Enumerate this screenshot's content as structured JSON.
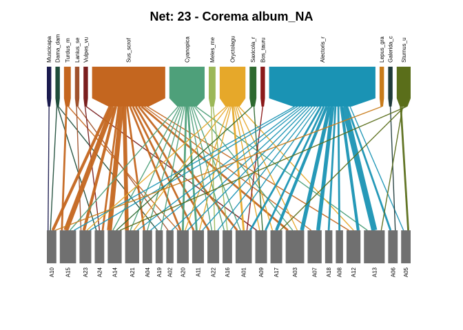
{
  "title": "Net: 23 - Corema album_NA",
  "colors": {
    "lower_box": "#707070",
    "background": "#ffffff"
  },
  "upper_nodes": [
    {
      "label": "Muscicapa",
      "weight": 1,
      "color": "#1a1a4e"
    },
    {
      "label": "Dama_dam",
      "weight": 1,
      "color": "#1f4d3a"
    },
    {
      "label": "Turdus_m",
      "weight": 2,
      "color": "#c4661f"
    },
    {
      "label": "Lanius_se",
      "weight": 1,
      "color": "#a0522d"
    },
    {
      "label": "Vulpes_vu",
      "weight": 1,
      "color": "#7a1f1f"
    },
    {
      "label": "Sus_scrof",
      "weight": 30,
      "color": "#c4661f"
    },
    {
      "label": "Cyanopica",
      "weight": 14,
      "color": "#4ea07a"
    },
    {
      "label": "Meles_me",
      "weight": 2,
      "color": "#9cb858"
    },
    {
      "label": "Oryctolagu",
      "weight": 10,
      "color": "#e6a82a"
    },
    {
      "label": "Saxicola_r",
      "weight": 2,
      "color": "#2e6a30"
    },
    {
      "label": "Bos_tauru",
      "weight": 1,
      "color": "#8b1a1a"
    },
    {
      "label": "Alectoris_r",
      "weight": 44,
      "color": "#1a93b4"
    },
    {
      "label": "Lepus_gra",
      "weight": 1,
      "color": "#c87b1a"
    },
    {
      "label": "Galerida_c",
      "weight": 1,
      "color": "#1f3a3a"
    },
    {
      "label": "Sturnus_u",
      "weight": 5,
      "color": "#5a6e1a"
    }
  ],
  "lower_nodes": [
    {
      "label": "A10",
      "weight": 3
    },
    {
      "label": "A15",
      "weight": 6
    },
    {
      "label": "A23",
      "weight": 4
    },
    {
      "label": "A24",
      "weight": 3
    },
    {
      "label": "A14",
      "weight": 5
    },
    {
      "label": "A21",
      "weight": 5
    },
    {
      "label": "A04",
      "weight": 3
    },
    {
      "label": "A19",
      "weight": 2
    },
    {
      "label": "A02",
      "weight": 2
    },
    {
      "label": "A20",
      "weight": 4
    },
    {
      "label": "A11",
      "weight": 4
    },
    {
      "label": "A22",
      "weight": 4
    },
    {
      "label": "A16",
      "weight": 3
    },
    {
      "label": "A01",
      "weight": 6
    },
    {
      "label": "A09",
      "weight": 4
    },
    {
      "label": "A17",
      "weight": 4
    },
    {
      "label": "A03",
      "weight": 7
    },
    {
      "label": "A07",
      "weight": 5
    },
    {
      "label": "A18",
      "weight": 2
    },
    {
      "label": "A08",
      "weight": 2
    },
    {
      "label": "A12",
      "weight": 5
    },
    {
      "label": "A13",
      "weight": 8
    },
    {
      "label": "A06",
      "weight": 3
    },
    {
      "label": "A05",
      "weight": 3
    }
  ],
  "links": [
    {
      "from": "Muscicapa",
      "to": "A10",
      "w": 1
    },
    {
      "from": "Dama_dam",
      "to": "A10",
      "w": 1
    },
    {
      "from": "Dama_dam",
      "to": "A24",
      "w": 1
    },
    {
      "from": "Dama_dam",
      "to": "A19",
      "w": 1
    },
    {
      "from": "Turdus_m",
      "to": "A15",
      "w": 2
    },
    {
      "from": "Turdus_m",
      "to": "A20",
      "w": 1
    },
    {
      "from": "Lanius_se",
      "to": "A23",
      "w": 1
    },
    {
      "from": "Lanius_se",
      "to": "A02",
      "w": 1
    },
    {
      "from": "Vulpes_vu",
      "to": "A24",
      "w": 1
    },
    {
      "from": "Vulpes_vu",
      "to": "A09",
      "w": 1
    },
    {
      "from": "Sus_scrof",
      "to": "A10",
      "w": 3
    },
    {
      "from": "Sus_scrof",
      "to": "A15",
      "w": 5
    },
    {
      "from": "Sus_scrof",
      "to": "A23",
      "w": 3
    },
    {
      "from": "Sus_scrof",
      "to": "A24",
      "w": 2
    },
    {
      "from": "Sus_scrof",
      "to": "A14",
      "w": 5
    },
    {
      "from": "Sus_scrof",
      "to": "A21",
      "w": 4
    },
    {
      "from": "Sus_scrof",
      "to": "A04",
      "w": 2
    },
    {
      "from": "Sus_scrof",
      "to": "A20",
      "w": 2
    },
    {
      "from": "Sus_scrof",
      "to": "A11",
      "w": 2
    },
    {
      "from": "Sus_scrof",
      "to": "A22",
      "w": 2
    },
    {
      "from": "Sus_scrof",
      "to": "A01",
      "w": 2
    },
    {
      "from": "Sus_scrof",
      "to": "A03",
      "w": 2
    },
    {
      "from": "Sus_scrof",
      "to": "A07",
      "w": 1
    },
    {
      "from": "Sus_scrof",
      "to": "A12",
      "w": 1
    },
    {
      "from": "Cyanopica",
      "to": "A15",
      "w": 1
    },
    {
      "from": "Cyanopica",
      "to": "A14",
      "w": 1
    },
    {
      "from": "Cyanopica",
      "to": "A21",
      "w": 1
    },
    {
      "from": "Cyanopica",
      "to": "A04",
      "w": 1
    },
    {
      "from": "Cyanopica",
      "to": "A19",
      "w": 1
    },
    {
      "from": "Cyanopica",
      "to": "A20",
      "w": 2
    },
    {
      "from": "Cyanopica",
      "to": "A11",
      "w": 2
    },
    {
      "from": "Cyanopica",
      "to": "A22",
      "w": 1
    },
    {
      "from": "Cyanopica",
      "to": "A16",
      "w": 1
    },
    {
      "from": "Cyanopica",
      "to": "A01",
      "w": 1
    },
    {
      "from": "Cyanopica",
      "to": "A03",
      "w": 1
    },
    {
      "from": "Cyanopica",
      "to": "A13",
      "w": 1
    },
    {
      "from": "Meles_me",
      "to": "A22",
      "w": 1
    },
    {
      "from": "Meles_me",
      "to": "A16",
      "w": 1
    },
    {
      "from": "Oryctolagu",
      "to": "A23",
      "w": 1
    },
    {
      "from": "Oryctolagu",
      "to": "A21",
      "w": 1
    },
    {
      "from": "Oryctolagu",
      "to": "A20",
      "w": 1
    },
    {
      "from": "Oryctolagu",
      "to": "A11",
      "w": 1
    },
    {
      "from": "Oryctolagu",
      "to": "A01",
      "w": 2
    },
    {
      "from": "Oryctolagu",
      "to": "A09",
      "w": 1
    },
    {
      "from": "Oryctolagu",
      "to": "A17",
      "w": 1
    },
    {
      "from": "Oryctolagu",
      "to": "A03",
      "w": 1
    },
    {
      "from": "Oryctolagu",
      "to": "A12",
      "w": 1
    },
    {
      "from": "Saxicola_r",
      "to": "A14",
      "w": 1
    },
    {
      "from": "Saxicola_r",
      "to": "A09",
      "w": 1
    },
    {
      "from": "Bos_tauru",
      "to": "A01",
      "w": 1
    },
    {
      "from": "Alectoris_r",
      "to": "A15",
      "w": 1
    },
    {
      "from": "Alectoris_r",
      "to": "A23",
      "w": 1
    },
    {
      "from": "Alectoris_r",
      "to": "A21",
      "w": 1
    },
    {
      "from": "Alectoris_r",
      "to": "A04",
      "w": 1
    },
    {
      "from": "Alectoris_r",
      "to": "A02",
      "w": 1
    },
    {
      "from": "Alectoris_r",
      "to": "A20",
      "w": 1
    },
    {
      "from": "Alectoris_r",
      "to": "A11",
      "w": 1
    },
    {
      "from": "Alectoris_r",
      "to": "A22",
      "w": 1
    },
    {
      "from": "Alectoris_r",
      "to": "A16",
      "w": 1
    },
    {
      "from": "Alectoris_r",
      "to": "A01",
      "w": 2
    },
    {
      "from": "Alectoris_r",
      "to": "A09",
      "w": 2
    },
    {
      "from": "Alectoris_r",
      "to": "A17",
      "w": 3
    },
    {
      "from": "Alectoris_r",
      "to": "A03",
      "w": 4
    },
    {
      "from": "Alectoris_r",
      "to": "A07",
      "w": 4
    },
    {
      "from": "Alectoris_r",
      "to": "A18",
      "w": 2
    },
    {
      "from": "Alectoris_r",
      "to": "A08",
      "w": 2
    },
    {
      "from": "Alectoris_r",
      "to": "A12",
      "w": 3
    },
    {
      "from": "Alectoris_r",
      "to": "A13",
      "w": 6
    },
    {
      "from": "Alectoris_r",
      "to": "A06",
      "w": 2
    },
    {
      "from": "Alectoris_r",
      "to": "A05",
      "w": 1
    },
    {
      "from": "Lepus_gra",
      "to": "A10",
      "w": 1
    },
    {
      "from": "Galerida_c",
      "to": "A06",
      "w": 1
    },
    {
      "from": "Sturnus_u",
      "to": "A05",
      "w": 2
    },
    {
      "from": "Sturnus_u",
      "to": "A13",
      "w": 1
    },
    {
      "from": "Sturnus_u",
      "to": "A17",
      "w": 1
    },
    {
      "from": "Sturnus_u",
      "to": "A14",
      "w": 1
    }
  ]
}
